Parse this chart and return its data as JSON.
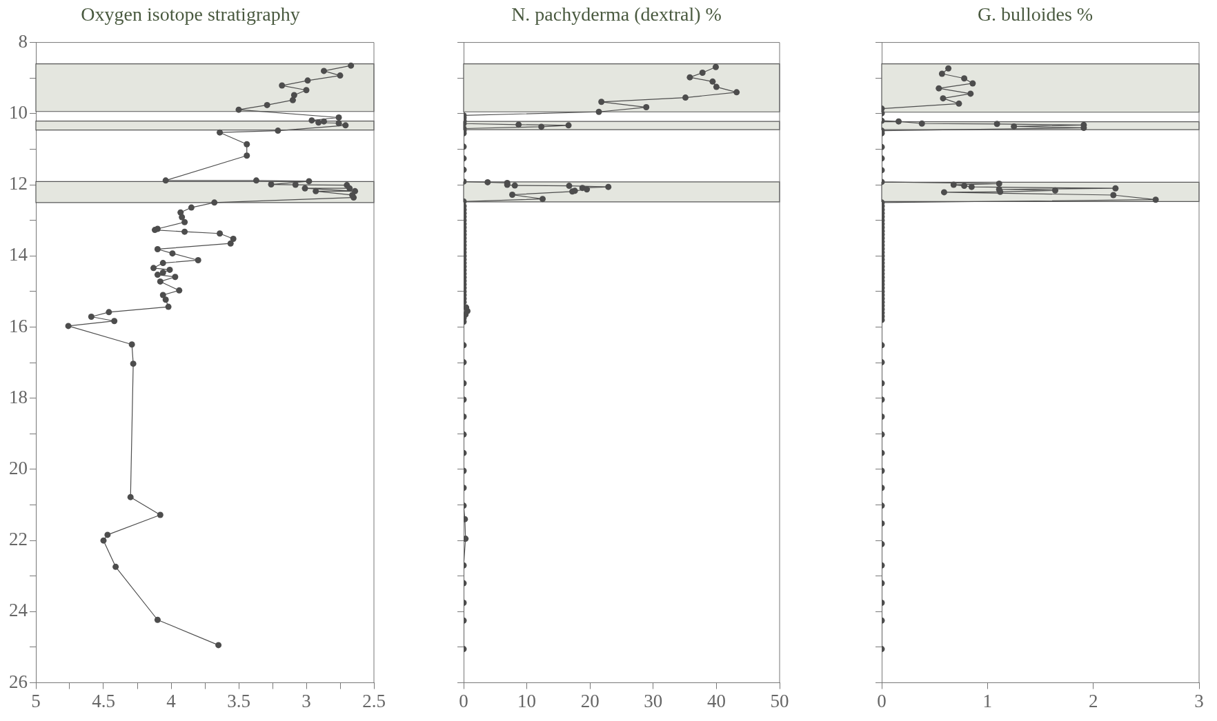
{
  "chart_data": [
    {
      "type": "line",
      "title": "Oxygen isotope stratigraphy",
      "marker": "circle",
      "xlim": [
        5,
        2.5
      ],
      "xticks": [
        5,
        {
          "value": 4.75,
          "label": null
        },
        4.5,
        {
          "value": 4.25,
          "label": null
        },
        4,
        {
          "value": 3.75,
          "label": null
        },
        3.5,
        {
          "value": 3.25,
          "label": null
        },
        3,
        {
          "value": 2.75,
          "label": null
        },
        2.5
      ],
      "ylim": [
        26,
        8
      ],
      "yticks": [
        8,
        {
          "value": 9,
          "label": null
        },
        10,
        {
          "value": 11,
          "label": null
        },
        12,
        {
          "value": 13,
          "label": null
        },
        14,
        {
          "value": 15,
          "label": null
        },
        16,
        {
          "value": 17,
          "label": null
        },
        18,
        {
          "value": 19,
          "label": null
        },
        20,
        {
          "value": 21,
          "label": null
        },
        22,
        {
          "value": 23,
          "label": null
        },
        24,
        {
          "value": 25,
          "label": null
        },
        26
      ],
      "bands": [
        {
          "axis": "y",
          "from": 8.6,
          "to": 9.94,
          "color": "#e4e6df"
        },
        {
          "axis": "y",
          "from": 10.21,
          "to": 10.46,
          "color": "#e4e6df"
        },
        {
          "axis": "y",
          "from": 11.91,
          "to": 12.5,
          "color": "#e4e6df"
        }
      ],
      "series": [
        {
          "color": "#4d4d4d",
          "x": [
            2.67,
            2.87,
            2.75,
            2.99,
            3.18,
            3.0,
            3.09,
            3.1,
            3.29,
            3.5,
            2.76,
            2.96,
            2.87,
            2.91,
            2.76,
            2.71,
            3.21,
            3.64,
            3.44,
            3.44,
            4.04,
            3.37,
            2.98,
            3.26,
            3.08,
            2.7,
            2.68,
            3.01,
            2.64,
            2.93,
            2.66,
            2.65,
            3.68,
            3.85,
            3.93,
            3.92,
            3.9,
            4.1,
            4.12,
            3.9,
            3.64,
            3.54,
            3.56,
            4.1,
            3.99,
            3.8,
            4.06,
            4.13,
            4.01,
            4.06,
            4.1,
            3.97,
            4.08,
            3.94,
            4.06,
            4.04,
            4.02,
            4.46,
            4.59,
            4.42,
            4.76,
            4.29,
            4.28,
            4.3,
            4.08,
            4.47,
            4.5,
            4.41,
            4.1,
            3.65
          ],
          "values": [
            8.65,
            8.8,
            8.93,
            9.07,
            9.21,
            9.34,
            9.48,
            9.62,
            9.76,
            9.89,
            10.11,
            10.19,
            10.22,
            10.25,
            10.27,
            10.33,
            10.48,
            10.53,
            10.86,
            11.18,
            11.88,
            11.88,
            11.9,
            11.99,
            12.0,
            12.01,
            12.1,
            12.1,
            12.18,
            12.18,
            12.29,
            12.36,
            12.5,
            12.64,
            12.78,
            12.91,
            13.05,
            13.24,
            13.27,
            13.32,
            13.37,
            13.52,
            13.65,
            13.81,
            13.93,
            14.12,
            14.2,
            14.34,
            14.39,
            14.47,
            14.53,
            14.59,
            14.72,
            14.97,
            15.1,
            15.23,
            15.43,
            15.58,
            15.71,
            15.83,
            15.97,
            16.49,
            17.03,
            20.78,
            21.28,
            21.84,
            22.0,
            22.74,
            24.23,
            24.94
          ]
        }
      ]
    },
    {
      "type": "line",
      "title": "N. pachyderma (dextral) %",
      "marker": "circle",
      "tick_labels": "x",
      "xlim": [
        0,
        50
      ],
      "xticks": [
        0,
        10,
        20,
        30,
        40,
        50
      ],
      "ylim": [
        26,
        8
      ],
      "yticks": [
        {
          "value": 8,
          "label": null
        },
        {
          "value": 9,
          "label": null
        },
        {
          "value": 10,
          "label": null
        },
        {
          "value": 11,
          "label": null
        },
        {
          "value": 12,
          "label": null
        },
        {
          "value": 13,
          "label": null
        },
        {
          "value": 14,
          "label": null
        },
        {
          "value": 15,
          "label": null
        },
        {
          "value": 16,
          "label": null
        },
        {
          "value": 17,
          "label": null
        },
        {
          "value": 18,
          "label": null
        },
        {
          "value": 19,
          "label": null
        },
        {
          "value": 20,
          "label": null
        },
        {
          "value": 21,
          "label": null
        },
        {
          "value": 22,
          "label": null
        },
        {
          "value": 23,
          "label": null
        },
        {
          "value": 24,
          "label": null
        },
        {
          "value": 25,
          "label": null
        },
        {
          "value": 26,
          "label": null
        }
      ],
      "bands": [
        {
          "axis": "y",
          "from": 8.6,
          "to": 9.95,
          "color": "#e4e6df"
        },
        {
          "axis": "y",
          "from": 10.22,
          "to": 10.45,
          "color": "#e4e6df"
        },
        {
          "axis": "y",
          "from": 11.92,
          "to": 12.48,
          "color": "#e4e6df"
        }
      ],
      "series": [
        {
          "color": "#4d4d4d",
          "x": [
            39.9,
            37.8,
            35.8,
            39.4,
            40.0,
            43.2,
            35.1,
            21.8,
            28.9,
            21.4,
            0,
            0,
            0,
            0,
            8.7,
            16.6,
            12.3,
            0,
            0,
            0,
            0,
            0,
            0,
            0,
            3.8,
            6.9,
            6.9,
            8.1,
            16.7,
            22.9,
            18.8,
            19.5,
            17.6,
            17.2,
            7.7,
            12.5,
            0,
            0,
            0,
            0,
            0,
            0,
            0,
            0,
            0,
            0,
            0,
            0,
            0,
            0,
            0,
            0,
            0,
            0,
            0,
            0,
            0,
            0,
            0,
            0,
            0,
            0,
            0,
            0,
            0,
            0.4,
            0.6,
            0.3,
            0,
            0,
            0,
            0,
            0,
            0,
            0,
            0,
            0,
            0,
            0,
            0,
            0.2,
            0.3,
            0,
            0,
            0,
            0,
            0
          ],
          "values": [
            8.69,
            8.85,
            8.98,
            9.1,
            9.25,
            9.4,
            9.55,
            9.67,
            9.82,
            9.95,
            10.05,
            10.12,
            10.2,
            10.28,
            10.31,
            10.33,
            10.37,
            10.42,
            10.48,
            10.55,
            10.93,
            11.26,
            11.58,
            11.91,
            11.93,
            11.95,
            12.0,
            12.02,
            12.03,
            12.06,
            12.09,
            12.13,
            12.17,
            12.19,
            12.28,
            12.4,
            12.47,
            12.6,
            12.7,
            12.8,
            12.9,
            13.0,
            13.1,
            13.2,
            13.3,
            13.4,
            13.5,
            13.6,
            13.7,
            13.8,
            13.9,
            14.0,
            14.1,
            14.2,
            14.3,
            14.4,
            14.5,
            14.6,
            14.7,
            14.8,
            14.9,
            15.0,
            15.1,
            15.2,
            15.3,
            15.45,
            15.55,
            15.65,
            15.75,
            15.85,
            16.51,
            16.99,
            17.58,
            18.04,
            18.52,
            19.02,
            19.54,
            20.04,
            20.52,
            21.02,
            21.4,
            21.95,
            22.7,
            23.2,
            23.75,
            24.25,
            25.05
          ]
        }
      ]
    },
    {
      "type": "line",
      "title": "G. bulloides %",
      "marker": "circle",
      "tick_labels": "x",
      "xlim": [
        0,
        3
      ],
      "xticks": [
        0,
        1,
        2,
        3
      ],
      "ylim": [
        26,
        8
      ],
      "yticks": [
        {
          "value": 8,
          "label": null
        },
        {
          "value": 9,
          "label": null
        },
        {
          "value": 10,
          "label": null
        },
        {
          "value": 11,
          "label": null
        },
        {
          "value": 12,
          "label": null
        },
        {
          "value": 13,
          "label": null
        },
        {
          "value": 14,
          "label": null
        },
        {
          "value": 15,
          "label": null
        },
        {
          "value": 16,
          "label": null
        },
        {
          "value": 17,
          "label": null
        },
        {
          "value": 18,
          "label": null
        },
        {
          "value": 19,
          "label": null
        },
        {
          "value": 20,
          "label": null
        },
        {
          "value": 21,
          "label": null
        },
        {
          "value": 22,
          "label": null
        },
        {
          "value": 23,
          "label": null
        },
        {
          "value": 24,
          "label": null
        },
        {
          "value": 25,
          "label": null
        },
        {
          "value": 26,
          "label": null
        }
      ],
      "bands": [
        {
          "axis": "y",
          "from": 8.6,
          "to": 9.96,
          "color": "#e4e6df"
        },
        {
          "axis": "y",
          "from": 10.23,
          "to": 10.45,
          "color": "#e4e6df"
        },
        {
          "axis": "y",
          "from": 11.93,
          "to": 12.47,
          "color": "#e4e6df"
        }
      ],
      "series": [
        {
          "color": "#4d4d4d",
          "x": [
            0.63,
            0.57,
            0.78,
            0.86,
            0.54,
            0.84,
            0.58,
            0.73,
            0,
            0,
            0,
            0.16,
            0.38,
            1.09,
            1.91,
            1.25,
            1.91,
            0,
            0,
            0,
            0,
            0,
            0,
            1.11,
            0.68,
            0.78,
            0.85,
            2.21,
            1.11,
            1.64,
            1.12,
            0.59,
            2.19,
            2.59,
            0,
            0,
            0,
            0,
            0,
            0,
            0,
            0,
            0,
            0,
            0,
            0,
            0,
            0,
            0,
            0,
            0,
            0,
            0,
            0,
            0,
            0,
            0,
            0,
            0,
            0,
            0,
            0,
            0,
            0,
            0,
            0,
            0,
            0,
            0,
            0,
            0,
            0,
            0,
            0,
            0,
            0,
            0,
            0,
            0,
            0,
            0,
            0,
            0,
            0,
            0
          ],
          "values": [
            8.73,
            8.88,
            9.01,
            9.15,
            9.29,
            9.44,
            9.57,
            9.72,
            9.86,
            9.99,
            10.2,
            10.22,
            10.28,
            10.29,
            10.32,
            10.36,
            10.4,
            10.48,
            10.55,
            10.94,
            11.26,
            11.59,
            11.92,
            11.97,
            12.0,
            12.03,
            12.06,
            12.1,
            12.13,
            12.16,
            12.2,
            12.21,
            12.29,
            12.42,
            12.5,
            12.6,
            12.7,
            12.8,
            12.9,
            13.0,
            13.1,
            13.2,
            13.3,
            13.4,
            13.5,
            13.6,
            13.7,
            13.8,
            13.9,
            14.0,
            14.1,
            14.2,
            14.3,
            14.4,
            14.5,
            14.6,
            14.7,
            14.8,
            14.9,
            15.0,
            15.1,
            15.2,
            15.3,
            15.4,
            15.5,
            15.6,
            15.7,
            15.8,
            16.51,
            16.99,
            17.58,
            18.04,
            18.52,
            19.02,
            19.54,
            20.04,
            20.52,
            21.02,
            21.52,
            22.1,
            22.7,
            23.2,
            23.75,
            24.25,
            25.05
          ]
        }
      ]
    }
  ]
}
